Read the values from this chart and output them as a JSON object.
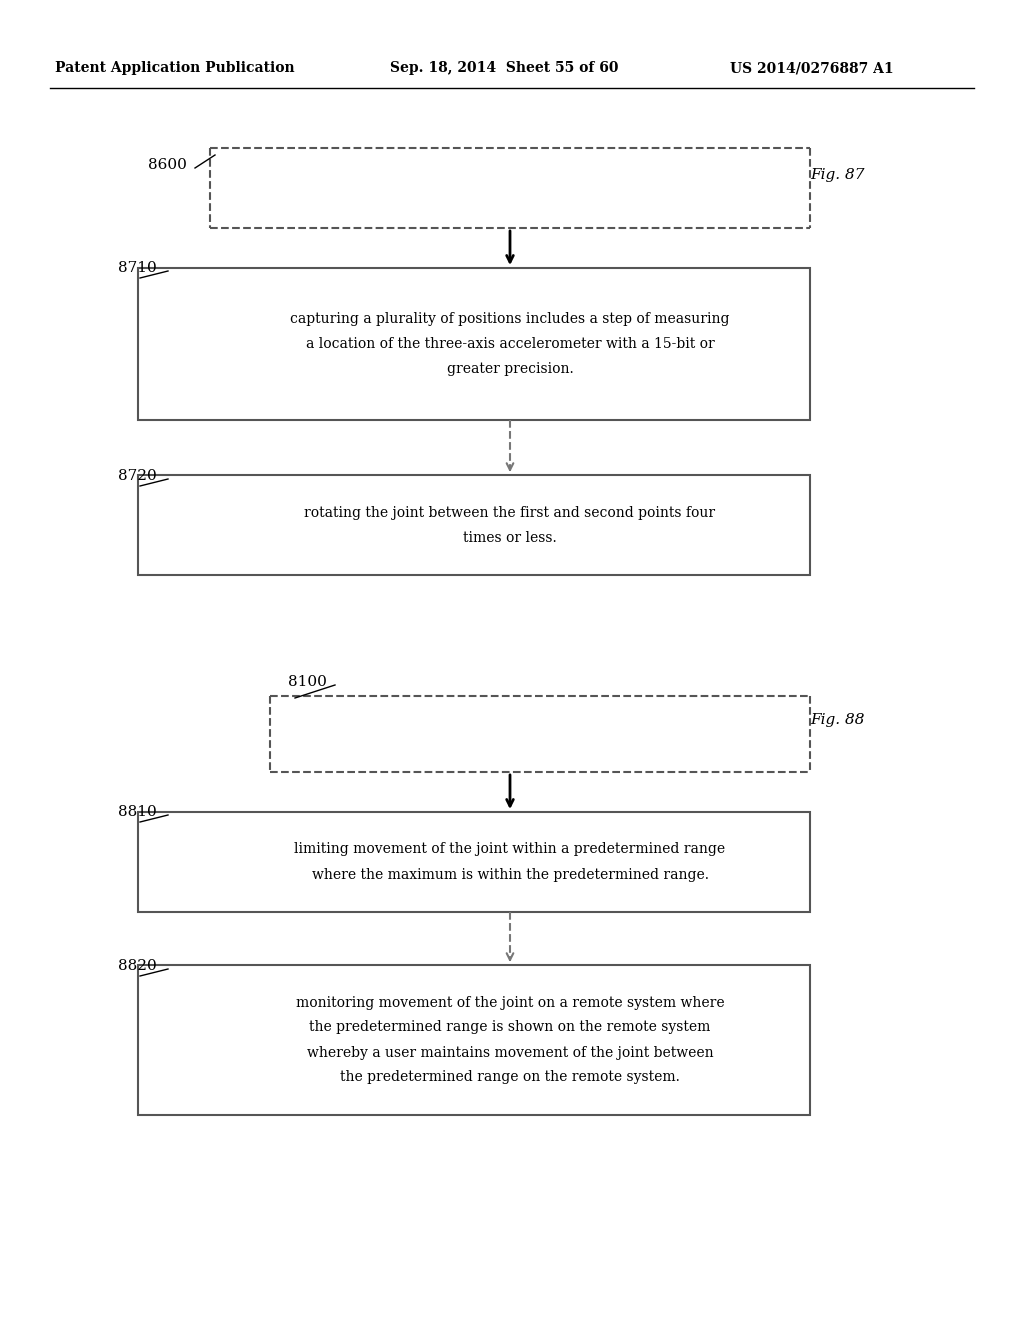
{
  "bg_color": "#ffffff",
  "header_left": "Patent Application Publication",
  "header_mid": "Sep. 18, 2014  Sheet 55 of 60",
  "header_right": "US 2014/0276887 A1",
  "fig87": {
    "fig_label": "Fig. 87",
    "dashed_label": "8600",
    "box1_label": "8710",
    "box1_text": "capturing a plurality of positions includes a step of measuring\na location of the three-axis accelerometer with a 15-bit or\ngreater precision.",
    "box2_label": "8720",
    "box2_text": "rotating the joint between the first and second points four\ntimes or less."
  },
  "fig88": {
    "fig_label": "Fig. 88",
    "dashed_label": "8100",
    "box1_label": "8810",
    "box1_text": "limiting movement of the joint within a predetermined range\nwhere the maximum is within the predetermined range.",
    "box2_label": "8820",
    "box2_text": "monitoring movement of the joint on a remote system where\nthe predetermined range is shown on the remote system\nwhereby a user maintains movement of the joint between\nthe predetermined range on the remote system."
  }
}
